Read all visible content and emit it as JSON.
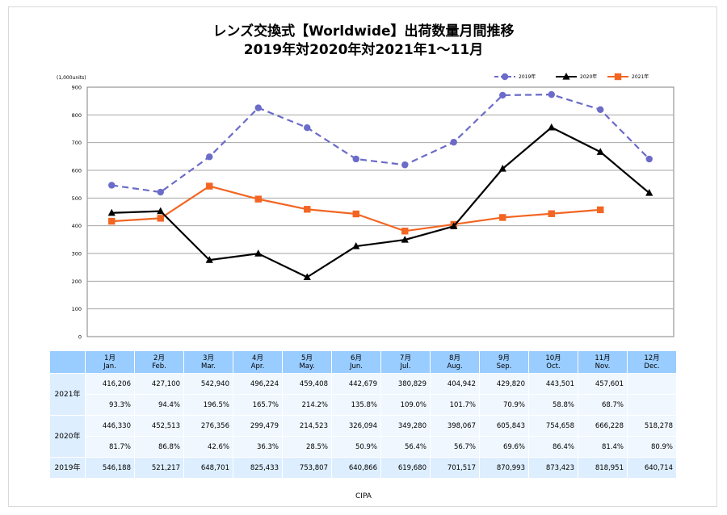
{
  "title_line1": "レンズ交換式【Worldwide】出荷数量月間推移",
  "title_line2": "2019年対2020年対2021年1～11月",
  "footer": "CIPA",
  "chart_data": {
    "type": "line",
    "unit_label": "(1,000units)",
    "ylim": [
      0,
      900
    ],
    "yticks": [
      0,
      100,
      200,
      300,
      400,
      500,
      600,
      700,
      800,
      900
    ],
    "grid": true,
    "legend_position": "top-right",
    "categories": [
      "1月 Jan.",
      "2月 Feb.",
      "3月 Mar.",
      "4月 Apr.",
      "5月 May.",
      "6月 Jun.",
      "7月 Jul.",
      "8月 Aug.",
      "9月 Sep.",
      "10月 Oct.",
      "11月 Nov.",
      "12月 Dec."
    ],
    "series": [
      {
        "name": "2019年",
        "color": "#6b6bc9",
        "style": "dashed",
        "marker": "circle",
        "values": [
          546.188,
          521.217,
          648.701,
          825.433,
          753.807,
          640.866,
          619.68,
          701.517,
          870.993,
          873.423,
          818.951,
          640.714
        ]
      },
      {
        "name": "2020年",
        "color": "#000000",
        "style": "solid",
        "marker": "triangle",
        "values": [
          446.33,
          452.513,
          276.356,
          299.479,
          214.523,
          326.094,
          349.28,
          398.067,
          605.843,
          754.658,
          666.228,
          518.278
        ]
      },
      {
        "name": "2021年",
        "color": "#f26522",
        "style": "solid",
        "marker": "square",
        "values": [
          416.206,
          427.1,
          542.94,
          496.224,
          459.408,
          442.679,
          380.829,
          404.942,
          429.82,
          443.501,
          457.601,
          null
        ]
      }
    ]
  },
  "table": {
    "months": [
      {
        "jp": "1月",
        "en": "Jan."
      },
      {
        "jp": "2月",
        "en": "Feb."
      },
      {
        "jp": "3月",
        "en": "Mar."
      },
      {
        "jp": "4月",
        "en": "Apr."
      },
      {
        "jp": "5月",
        "en": "May."
      },
      {
        "jp": "6月",
        "en": "Jun."
      },
      {
        "jp": "7月",
        "en": "Jul."
      },
      {
        "jp": "8月",
        "en": "Aug."
      },
      {
        "jp": "9月",
        "en": "Sep."
      },
      {
        "jp": "10月",
        "en": "Oct."
      },
      {
        "jp": "11月",
        "en": "Nov."
      },
      {
        "jp": "12月",
        "en": "Dec."
      }
    ],
    "rows": [
      {
        "label": "2021年",
        "values": [
          "416,206",
          "427,100",
          "542,940",
          "496,224",
          "459,408",
          "442,679",
          "380,829",
          "404,942",
          "429,820",
          "443,501",
          "457,601",
          ""
        ],
        "pct": [
          "93.3%",
          "94.4%",
          "196.5%",
          "165.7%",
          "214.2%",
          "135.8%",
          "109.0%",
          "101.7%",
          "70.9%",
          "58.8%",
          "68.7%",
          ""
        ]
      },
      {
        "label": "2020年",
        "values": [
          "446,330",
          "452,513",
          "276,356",
          "299,479",
          "214,523",
          "326,094",
          "349,280",
          "398,067",
          "605,843",
          "754,658",
          "666,228",
          "518,278"
        ],
        "pct": [
          "81.7%",
          "86.8%",
          "42.6%",
          "36.3%",
          "28.5%",
          "50.9%",
          "56.4%",
          "56.7%",
          "69.6%",
          "86.4%",
          "81.4%",
          "80.9%"
        ]
      },
      {
        "label": "2019年",
        "values": [
          "546,188",
          "521,217",
          "648,701",
          "825,433",
          "753,807",
          "640,866",
          "619,680",
          "701,517",
          "870,993",
          "873,423",
          "818,951",
          "640,714"
        ]
      }
    ]
  }
}
